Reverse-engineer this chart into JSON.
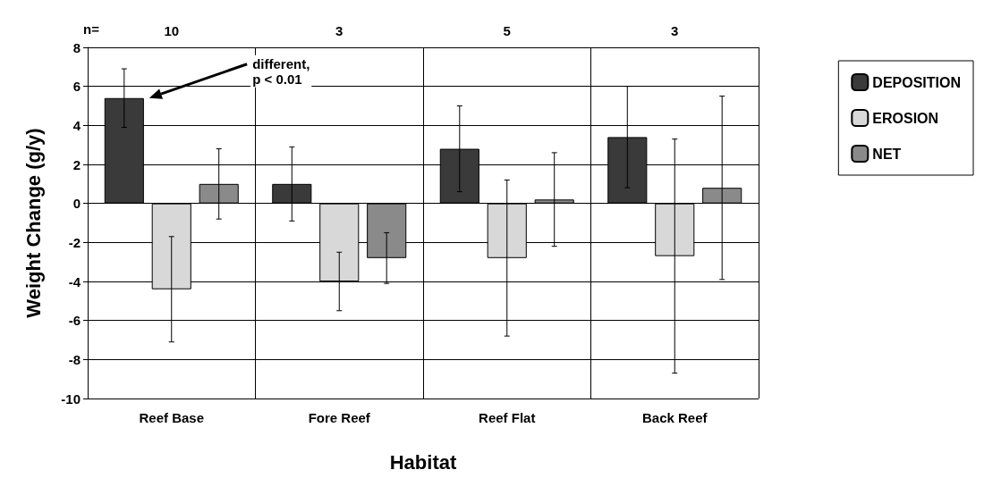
{
  "chart_data": {
    "type": "bar",
    "xlabel": "Habitat",
    "ylabel": "Weight Change (g/y)",
    "categories": [
      "Reef Base",
      "Fore Reef",
      "Reef Flat",
      "Back Reef"
    ],
    "series": [
      {
        "name": "DEPOSITION",
        "color": "#3a3a3a",
        "values": [
          5.4,
          1.0,
          2.8,
          3.4
        ],
        "errors": [
          1.5,
          1.9,
          2.2,
          2.6
        ]
      },
      {
        "name": "EROSION",
        "color": "#d8d8d8",
        "values": [
          -4.4,
          -4.0,
          -2.8,
          -2.7
        ],
        "errors": [
          2.7,
          1.5,
          4.0,
          6.0
        ]
      },
      {
        "name": "NET",
        "color": "#8a8a8a",
        "values": [
          1.0,
          -2.8,
          0.2,
          0.8
        ],
        "errors": [
          1.8,
          1.3,
          2.4,
          4.7
        ]
      }
    ],
    "ylim": [
      -10,
      8
    ],
    "yticks": [
      -10,
      -8,
      -6,
      -4,
      -2,
      0,
      2,
      4,
      6,
      8
    ],
    "grid": true,
    "legend": "right",
    "annotations": [
      "n=",
      "10",
      "3",
      "5",
      "3",
      "different,\np < 0.01"
    ]
  }
}
